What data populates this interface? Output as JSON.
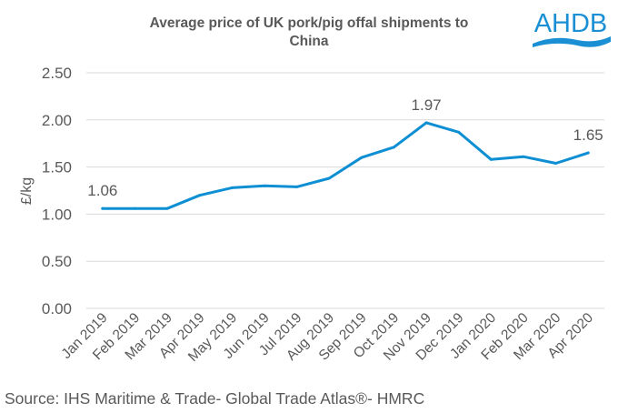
{
  "logo": {
    "text": "AHDB",
    "color": "#1a8fd4"
  },
  "source": "Source: IHS Maritime & Trade- Global Trade Atlas®- HMRC",
  "chart_data": {
    "type": "line",
    "title_lines": [
      "Average price of UK pork/pig offal shipments to",
      "China"
    ],
    "xlabel": "",
    "ylabel": "£/kg",
    "ylim": [
      0,
      2.5
    ],
    "yticks": [
      0,
      0.5,
      1.0,
      1.5,
      2.0,
      2.5
    ],
    "ytick_labels": [
      "0.00",
      "0.50",
      "1.00",
      "1.50",
      "2.00",
      "2.50"
    ],
    "grid": true,
    "legend": "none",
    "line_color": "#0e8fd3",
    "categories": [
      "Jan 2019",
      "Feb 2019",
      "Mar 2019",
      "Apr 2019",
      "May 2019",
      "Jun 2019",
      "Jul 2019",
      "Aug 2019",
      "Sep 2019",
      "Oct 2019",
      "Nov 2019",
      "Dec 2019",
      "Jan 2020",
      "Feb 2020",
      "Mar 2020",
      "Apr 2020"
    ],
    "series": [
      {
        "name": "Average price",
        "values": [
          1.06,
          1.06,
          1.06,
          1.2,
          1.28,
          1.3,
          1.29,
          1.38,
          1.6,
          1.71,
          1.97,
          1.87,
          1.58,
          1.61,
          1.54,
          1.65
        ]
      }
    ],
    "data_labels": [
      {
        "index": 0,
        "text": "1.06"
      },
      {
        "index": 10,
        "text": "1.97"
      },
      {
        "index": 15,
        "text": "1.65"
      }
    ]
  }
}
